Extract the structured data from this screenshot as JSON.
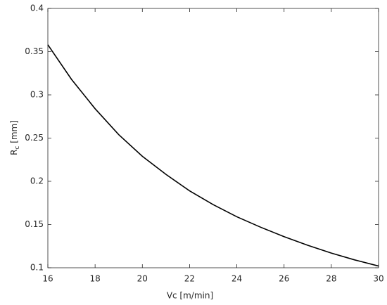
{
  "chart_data": {
    "type": "line",
    "xlabel": "Vc [m/min]",
    "ylabel": {
      "main": "R",
      "sub": "c",
      "rest": " [mm]"
    },
    "x": [
      16,
      17,
      18,
      19,
      20,
      21,
      22,
      23,
      24,
      25,
      26,
      27,
      28,
      29,
      30
    ],
    "series": [
      {
        "color": "#000000",
        "values": [
          0.358,
          0.318,
          0.284,
          0.254,
          0.229,
          0.208,
          0.189,
          0.173,
          0.159,
          0.147,
          0.136,
          0.126,
          0.117,
          0.109,
          0.102
        ]
      }
    ],
    "xlim": [
      16,
      30
    ],
    "xticks": [
      16,
      18,
      20,
      22,
      24,
      26,
      28,
      30
    ],
    "ylim": [
      0.1,
      0.4
    ],
    "yticks": [
      0.1,
      0.15,
      0.2,
      0.25,
      0.3,
      0.35,
      0.4
    ],
    "grid": false
  }
}
